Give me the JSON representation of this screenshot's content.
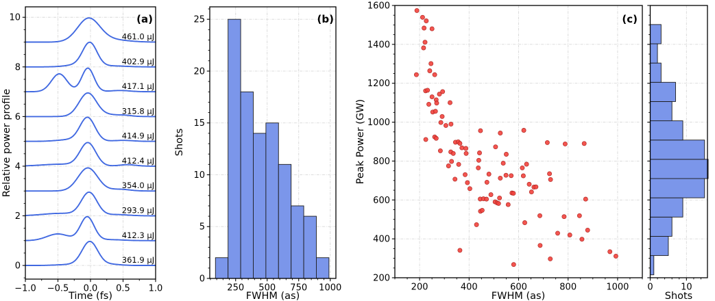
{
  "colors": {
    "curve": "#4169e1",
    "bar_fill": "#7b96ea",
    "bar_edge": "#1c1c1c",
    "dot_fill": "#f2433d",
    "dot_edge": "#b02823",
    "grid": "#d8d8d8",
    "axis": "#000000"
  },
  "chart_data": [
    {
      "panel": "a",
      "type": "line",
      "title": "(a)",
      "xlabel": "Time (fs)",
      "ylabel": "Relative power profile",
      "xlim": [
        -1.0,
        1.0
      ],
      "ylim": [
        -0.55,
        10.42
      ],
      "xticks": [
        -1.0,
        -0.5,
        0.0,
        0.5,
        1.0
      ],
      "xtick_labels": [
        "−1.0",
        "−0.5",
        "0.0",
        "0.5",
        "1.0"
      ],
      "yticks": [
        0,
        2,
        4,
        6,
        8,
        10
      ],
      "minor_x_step": 0.25,
      "minor_y_step": 0.5,
      "grid": true,
      "series": [
        {
          "label": "461.0 μJ",
          "offset": 9,
          "gauss": [
            [
              -0.03,
              0.17,
              0.93
            ],
            [
              0.3,
              0.25,
              0.1
            ]
          ]
        },
        {
          "label": "402.9 μJ",
          "offset": 8,
          "gauss": [
            [
              -0.01,
              0.11,
              0.94
            ],
            [
              -0.2,
              0.18,
              0.08
            ],
            [
              0.35,
              0.2,
              0.04
            ]
          ]
        },
        {
          "label": "417.1 μJ",
          "offset": 7,
          "gauss": [
            [
              -0.04,
              0.095,
              0.95
            ],
            [
              -0.48,
              0.12,
              0.72
            ],
            [
              0.45,
              0.15,
              0.05
            ]
          ]
        },
        {
          "label": "315.8 μJ",
          "offset": 6,
          "gauss": [
            [
              -0.04,
              0.135,
              0.95
            ],
            [
              0.28,
              0.1,
              0.05
            ],
            [
              0.5,
              0.12,
              0.06
            ]
          ]
        },
        {
          "label": "414.9 μJ",
          "offset": 5,
          "gauss": [
            [
              -0.045,
              0.115,
              0.94
            ],
            [
              -0.3,
              0.2,
              0.07
            ],
            [
              0.5,
              0.15,
              0.04
            ]
          ]
        },
        {
          "label": "412.4 μJ",
          "offset": 4,
          "gauss": [
            [
              -0.04,
              0.12,
              0.92
            ],
            [
              -0.45,
              0.3,
              0.08
            ],
            [
              0.57,
              0.13,
              0.06
            ]
          ]
        },
        {
          "label": "354.0 μJ",
          "offset": 3,
          "gauss": [
            [
              -0.04,
              0.15,
              0.93
            ],
            [
              0.45,
              0.15,
              0.07
            ]
          ]
        },
        {
          "label": "293.9 μJ",
          "offset": 2,
          "gauss": [
            [
              -0.02,
              0.12,
              0.92
            ],
            [
              -0.45,
              0.28,
              0.1
            ],
            [
              0.4,
              0.18,
              0.05
            ]
          ]
        },
        {
          "label": "412.3 μJ",
          "offset": 1,
          "gauss": [
            [
              -0.05,
              0.105,
              0.95
            ],
            [
              -0.5,
              0.17,
              0.27
            ],
            [
              0.3,
              0.2,
              0.04
            ]
          ]
        },
        {
          "label": "361.9 μJ",
          "offset": 0,
          "gauss": [
            [
              -0.01,
              0.12,
              0.95
            ],
            [
              0.3,
              0.15,
              0.05
            ],
            [
              -0.3,
              0.2,
              0.04
            ]
          ]
        }
      ]
    },
    {
      "panel": "b",
      "type": "bar",
      "title": "(b)",
      "xlabel": "FWHM (as)",
      "ylabel": "Shots",
      "xlim": [
        45,
        1045
      ],
      "ylim": [
        0,
        26.2
      ],
      "xticks": [
        250,
        500,
        750,
        1000
      ],
      "yticks": [
        0,
        5,
        10,
        15,
        20,
        25
      ],
      "minor_x_step": 50,
      "minor_y_step": 1,
      "grid": true,
      "bins": {
        "start": 90,
        "width": 100,
        "counts": [
          2,
          25,
          18,
          14,
          15,
          11,
          7,
          6,
          2
        ]
      }
    },
    {
      "panel": "c",
      "type": "scatter",
      "title": "(c)",
      "xlabel": "FWHM (as)",
      "ylabel": "Peak Power (GW)",
      "xlim": [
        100,
        1100
      ],
      "ylim": [
        200,
        1600
      ],
      "xticks": [
        200,
        400,
        600,
        800,
        1000
      ],
      "yticks": [
        200,
        400,
        600,
        800,
        1000,
        1200,
        1400,
        1600
      ],
      "minor_x_step": 50,
      "minor_y_step": 50,
      "grid": true,
      "points": [
        [
          189,
          1574
        ],
        [
          212,
          1539
        ],
        [
          227,
          1521
        ],
        [
          218,
          1484
        ],
        [
          250,
          1480
        ],
        [
          222,
          1411
        ],
        [
          216,
          1382
        ],
        [
          246,
          1301
        ],
        [
          241,
          1264
        ],
        [
          187,
          1244
        ],
        [
          261,
          1244
        ],
        [
          224,
          1161
        ],
        [
          232,
          1164
        ],
        [
          293,
          1157
        ],
        [
          280,
          1144
        ],
        [
          250,
          1130
        ],
        [
          267,
          1115
        ],
        [
          269,
          1098
        ],
        [
          237,
          1092
        ],
        [
          323,
          1100
        ],
        [
          253,
          1052
        ],
        [
          264,
          1056
        ],
        [
          291,
          1029
        ],
        [
          286,
          998
        ],
        [
          306,
          983
        ],
        [
          327,
          990
        ],
        [
          446,
          956
        ],
        [
          526,
          944
        ],
        [
          225,
          911
        ],
        [
          261,
          924
        ],
        [
          267,
          917
        ],
        [
          621,
          958
        ],
        [
          345,
          897
        ],
        [
          356,
          899
        ],
        [
          363,
          891
        ],
        [
          284,
          853
        ],
        [
          326,
          847
        ],
        [
          336,
          839
        ],
        [
          371,
          868
        ],
        [
          387,
          865
        ],
        [
          388,
          839
        ],
        [
          442,
          842
        ],
        [
          507,
          873
        ],
        [
          439,
          804
        ],
        [
          437,
          765
        ],
        [
          550,
          835
        ],
        [
          317,
          775
        ],
        [
          329,
          798
        ],
        [
          358,
          783
        ],
        [
          538,
          789
        ],
        [
          384,
          730
        ],
        [
          343,
          707
        ],
        [
          480,
          733
        ],
        [
          472,
          691
        ],
        [
          526,
          712
        ],
        [
          549,
          727
        ],
        [
          570,
          725
        ],
        [
          393,
          689
        ],
        [
          403,
          658
        ],
        [
          573,
          636
        ],
        [
          579,
          634
        ],
        [
          488,
          627
        ],
        [
          523,
          610
        ],
        [
          445,
          605
        ],
        [
          458,
          606
        ],
        [
          470,
          604
        ],
        [
          505,
          590
        ],
        [
          513,
          585
        ],
        [
          519,
          582
        ],
        [
          558,
          576
        ],
        [
          446,
          542
        ],
        [
          453,
          547
        ],
        [
          430,
          473
        ],
        [
          363,
          341
        ],
        [
          580,
          268
        ],
        [
          716,
          895
        ],
        [
          788,
          888
        ],
        [
          865,
          890
        ],
        [
          632,
          784
        ],
        [
          615,
          765
        ],
        [
          619,
          724
        ],
        [
          725,
          735
        ],
        [
          729,
          705
        ],
        [
          643,
          681
        ],
        [
          662,
          666
        ],
        [
          670,
          667
        ],
        [
          652,
          641
        ],
        [
          871,
          604
        ],
        [
          686,
          519
        ],
        [
          784,
          514
        ],
        [
          846,
          519
        ],
        [
          625,
          483
        ],
        [
          758,
          429
        ],
        [
          807,
          420
        ],
        [
          856,
          398
        ],
        [
          879,
          445
        ],
        [
          687,
          366
        ],
        [
          969,
          334
        ],
        [
          993,
          311
        ],
        [
          728,
          297
        ]
      ]
    },
    {
      "panel": "c_marginal",
      "type": "bar_h",
      "title": "",
      "xlabel": "Shots",
      "ylabel": "",
      "xlim": [
        0,
        15.8
      ],
      "ylim": [
        200,
        1600
      ],
      "xticks": [
        0,
        10
      ],
      "yticks": [
        200,
        400,
        600,
        800,
        1000,
        1200,
        1400,
        1600
      ],
      "minor_x_step": 2,
      "minor_y_step": 50,
      "grid": true,
      "bins": {
        "start": 215,
        "width": 99,
        "counts": [
          1,
          5,
          6,
          9,
          15,
          16,
          15,
          9,
          6,
          7,
          3,
          2,
          3
        ]
      }
    }
  ]
}
